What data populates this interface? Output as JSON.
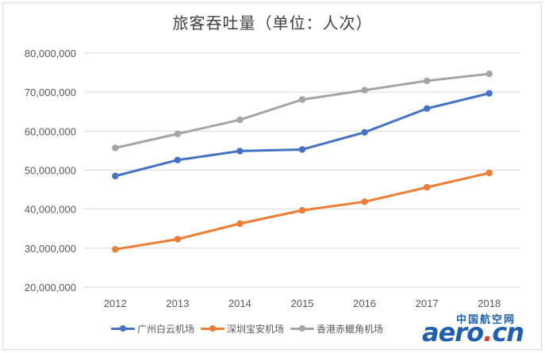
{
  "chart_data": {
    "type": "line",
    "title": "旅客吞吐量（单位：人次）",
    "categories": [
      "2012",
      "2013",
      "2014",
      "2015",
      "2016",
      "2017",
      "2018"
    ],
    "ylim": [
      20000000,
      80000000
    ],
    "yticks": [
      "20,000,000",
      "30,000,000",
      "40,000,000",
      "50,000,000",
      "60,000,000",
      "70,000,000",
      "80,000,000"
    ],
    "grid": true,
    "legend_position": "bottom",
    "series": [
      {
        "name": "广州白云机场",
        "color": "#4472c4",
        "values": [
          48500000,
          52600000,
          54900000,
          55300000,
          59700000,
          65800000,
          69700000
        ]
      },
      {
        "name": "深圳宝安机场",
        "color": "#ed7d31",
        "values": [
          29700000,
          32300000,
          36300000,
          39700000,
          41900000,
          45600000,
          49300000
        ]
      },
      {
        "name": "香港赤鱲角机场",
        "color": "#a5a5a5",
        "values": [
          55700000,
          59300000,
          62900000,
          68100000,
          70500000,
          72900000,
          74700000
        ]
      }
    ]
  },
  "watermark": {
    "cn": "中国航空网",
    "en_main": "aero",
    "en_dot": ".",
    "en_tld": "cn"
  }
}
